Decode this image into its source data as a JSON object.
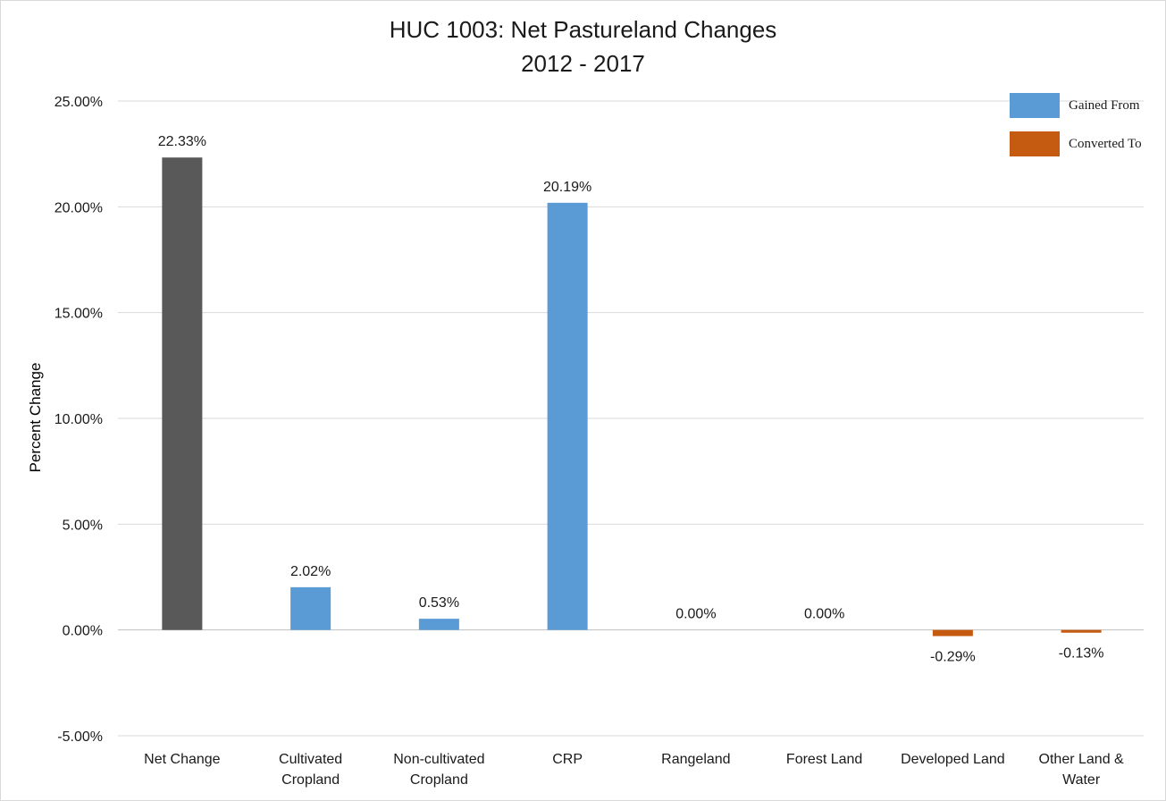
{
  "chart_data": {
    "type": "bar",
    "title": "HUC 1003: Net Pastureland Changes",
    "subtitle": "2012 - 2017",
    "ylabel": "Percent Change",
    "xlabel": "",
    "ylim": [
      -5,
      25
    ],
    "yticks": [
      -5,
      0,
      5,
      10,
      15,
      20,
      25
    ],
    "ytick_labels": [
      "-5.00%",
      "0.00%",
      "5.00%",
      "10.00%",
      "15.00%",
      "20.00%",
      "25.00%"
    ],
    "grid": true,
    "legend_position": "top-right",
    "categories": [
      [
        "Net Change"
      ],
      [
        "Cultivated",
        "Cropland"
      ],
      [
        "Non-cultivated",
        "Cropland"
      ],
      [
        "CRP"
      ],
      [
        "Rangeland"
      ],
      [
        "Forest Land"
      ],
      [
        "Developed Land"
      ],
      [
        "Other Land &",
        "Water"
      ]
    ],
    "values": [
      22.33,
      2.02,
      0.53,
      20.19,
      0.0,
      0.0,
      -0.29,
      -0.13
    ],
    "data_labels": [
      "22.33%",
      "2.02%",
      "0.53%",
      "20.19%",
      "0.00%",
      "0.00%",
      "-0.29%",
      "-0.13%"
    ],
    "bar_colors": [
      "#595959",
      "#5b9bd5",
      "#5b9bd5",
      "#5b9bd5",
      "#5b9bd5",
      "#5b9bd5",
      "#c55a11",
      "#c55a11"
    ],
    "legend": [
      {
        "label": "Gained From",
        "color": "#5b9bd5"
      },
      {
        "label": "Converted To",
        "color": "#c55a11"
      }
    ]
  }
}
